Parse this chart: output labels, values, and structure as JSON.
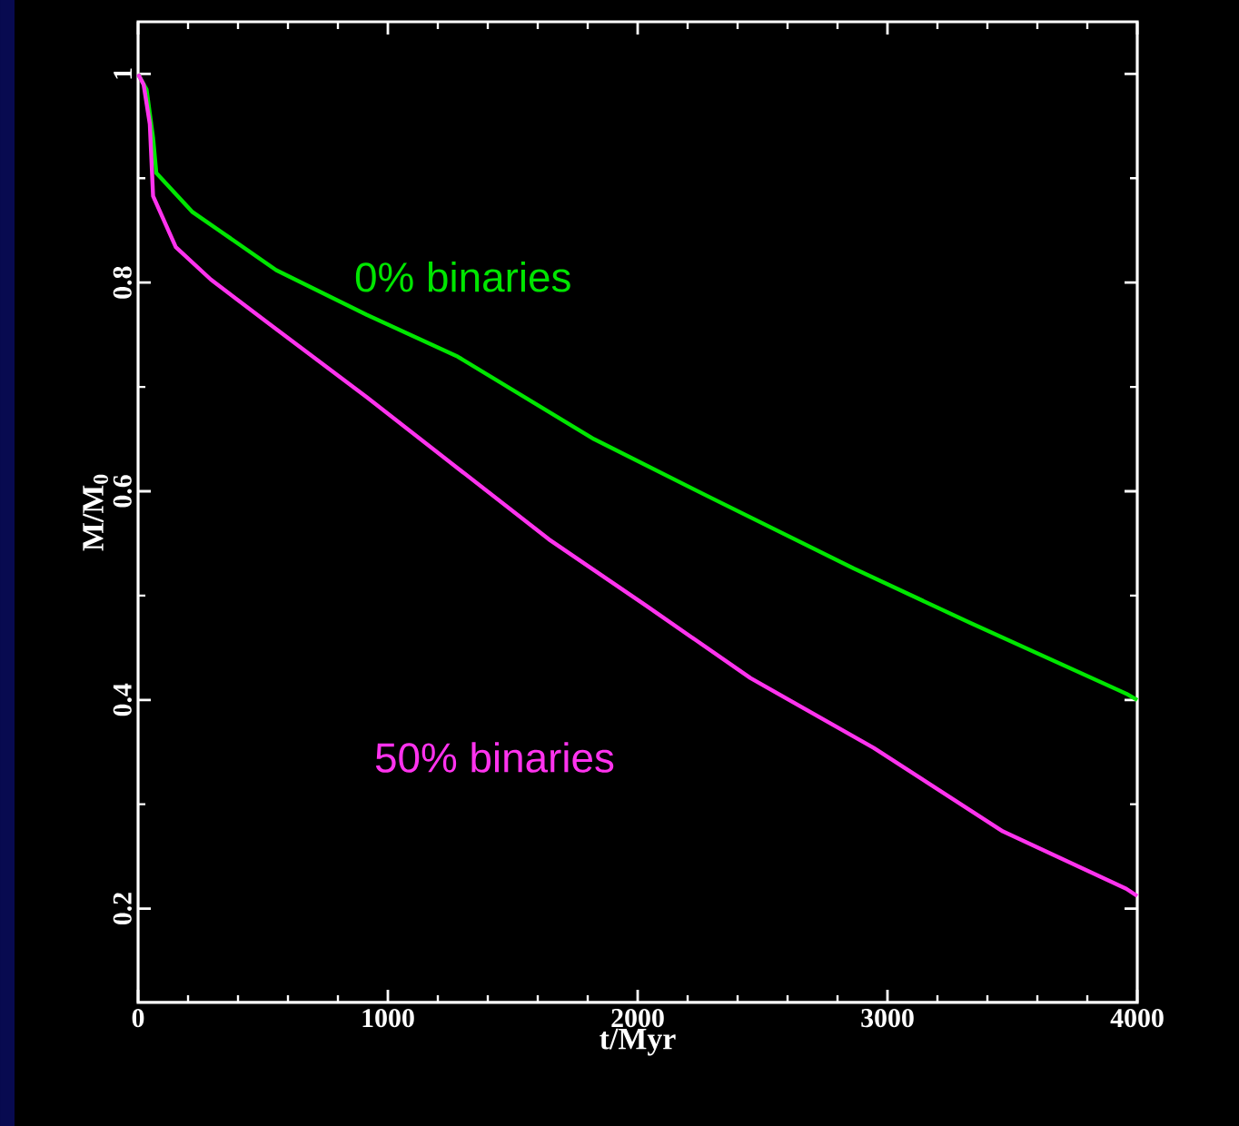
{
  "chart_data": {
    "type": "line",
    "xlabel": "t/Myr",
    "ylabel": "M/M$_{0}$",
    "xlim": [
      0,
      4000
    ],
    "ylim": [
      0.11,
      1.05
    ],
    "xticks": [
      0,
      1000,
      2000,
      3000,
      4000
    ],
    "yticks": [
      0.2,
      0.4,
      0.6,
      0.8,
      1
    ],
    "series": [
      {
        "name": "0% binaries",
        "color": "#00e600",
        "x": [
          0,
          34,
          60,
          73,
          216,
          553,
          916,
          1280,
          1825,
          2291,
          2865,
          3330,
          3956,
          4000
        ],
        "values": [
          1,
          0.985,
          0.939,
          0.905,
          0.868,
          0.812,
          0.769,
          0.729,
          0.65,
          0.594,
          0.526,
          0.474,
          0.406,
          0.4
        ]
      },
      {
        "name": "50% binaries",
        "color": "#ff33ee",
        "x": [
          0,
          22,
          47,
          60,
          151,
          291,
          528,
          916,
          1280,
          1644,
          2036,
          2451,
          2945,
          3462,
          3956,
          4000
        ],
        "values": [
          1,
          0.99,
          0.952,
          0.883,
          0.834,
          0.803,
          0.76,
          0.69,
          0.622,
          0.554,
          0.49,
          0.421,
          0.354,
          0.274,
          0.219,
          0.212
        ]
      }
    ]
  }
}
